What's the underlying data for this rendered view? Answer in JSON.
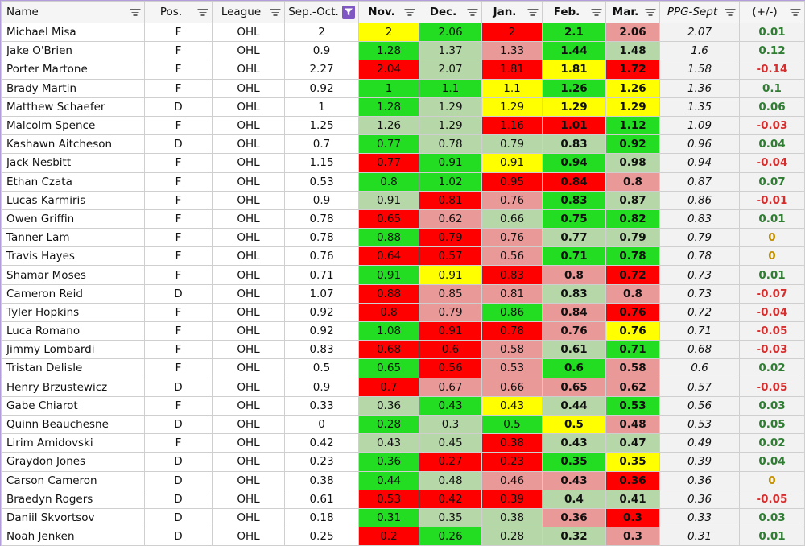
{
  "colors": {
    "green": "#22dd22",
    "light_green": "#b6d7a8",
    "yellow": "#ffff00",
    "light_red": "#ea9999",
    "red": "#ff0000",
    "pm_positive": "#2e7d32",
    "pm_negative": "#d32f2f",
    "pm_zero": "#bf8f00",
    "filter_active": "#7e57c2"
  },
  "headers": [
    {
      "label": "Name",
      "filter": "filter-icon"
    },
    {
      "label": "Pos.",
      "filter": "filter-icon"
    },
    {
      "label": "League",
      "filter": "filter-icon"
    },
    {
      "label": "Sep.-Oct.",
      "filter": "filter-active-icon"
    },
    {
      "label": "Nov.",
      "filter": "filter-icon"
    },
    {
      "label": "Dec.",
      "filter": "filter-icon"
    },
    {
      "label": "Jan.",
      "filter": "filter-icon"
    },
    {
      "label": "Feb.",
      "filter": "filter-icon"
    },
    {
      "label": "Mar.",
      "filter": "filter-icon"
    },
    {
      "label": "PPG-Sept",
      "filter": "filter-icon"
    },
    {
      "label": "(+/-)",
      "filter": "filter-icon"
    }
  ],
  "rows": [
    {
      "name": "Michael Misa",
      "pos": "F",
      "league": "OHL",
      "sepoct": "2",
      "nov": "2",
      "nov_c": "yellow",
      "dec": "2.06",
      "dec_c": "green",
      "jan": "2",
      "jan_c": "red",
      "feb": "2.1",
      "feb_c": "green",
      "mar": "2.06",
      "mar_c": "light_red",
      "ppg": "2.07",
      "pm": "0.01"
    },
    {
      "name": "Jake O'Brien",
      "pos": "F",
      "league": "OHL",
      "sepoct": "0.9",
      "nov": "1.28",
      "nov_c": "green",
      "dec": "1.37",
      "dec_c": "light_green",
      "jan": "1.33",
      "jan_c": "light_red",
      "feb": "1.44",
      "feb_c": "green",
      "mar": "1.48",
      "mar_c": "light_green",
      "ppg": "1.6",
      "pm": "0.12"
    },
    {
      "name": "Porter Martone",
      "pos": "F",
      "league": "OHL",
      "sepoct": "2.27",
      "nov": "2.04",
      "nov_c": "red",
      "dec": "2.07",
      "dec_c": "light_green",
      "jan": "1.81",
      "jan_c": "red",
      "feb": "1.81",
      "feb_c": "yellow",
      "mar": "1.72",
      "mar_c": "red",
      "ppg": "1.58",
      "pm": "-0.14"
    },
    {
      "name": "Brady Martin",
      "pos": "F",
      "league": "OHL",
      "sepoct": "0.92",
      "nov": "1",
      "nov_c": "green",
      "dec": "1.1",
      "dec_c": "green",
      "jan": "1.1",
      "jan_c": "yellow",
      "feb": "1.26",
      "feb_c": "green",
      "mar": "1.26",
      "mar_c": "yellow",
      "ppg": "1.36",
      "pm": "0.1"
    },
    {
      "name": "Matthew Schaefer",
      "pos": "D",
      "league": "OHL",
      "sepoct": "1",
      "nov": "1.28",
      "nov_c": "green",
      "dec": "1.29",
      "dec_c": "light_green",
      "jan": "1.29",
      "jan_c": "yellow",
      "feb": "1.29",
      "feb_c": "yellow",
      "mar": "1.29",
      "mar_c": "yellow",
      "ppg": "1.35",
      "pm": "0.06"
    },
    {
      "name": "Malcolm Spence",
      "pos": "F",
      "league": "OHL",
      "sepoct": "1.25",
      "nov": "1.26",
      "nov_c": "light_green",
      "dec": "1.29",
      "dec_c": "light_green",
      "jan": "1.16",
      "jan_c": "red",
      "feb": "1.01",
      "feb_c": "red",
      "mar": "1.12",
      "mar_c": "green",
      "ppg": "1.09",
      "pm": "-0.03"
    },
    {
      "name": "Kashawn Aitcheson",
      "pos": "D",
      "league": "OHL",
      "sepoct": "0.7",
      "nov": "0.77",
      "nov_c": "green",
      "dec": "0.78",
      "dec_c": "light_green",
      "jan": "0.79",
      "jan_c": "light_green",
      "feb": "0.83",
      "feb_c": "light_green",
      "mar": "0.92",
      "mar_c": "green",
      "ppg": "0.96",
      "pm": "0.04"
    },
    {
      "name": "Jack Nesbitt",
      "pos": "F",
      "league": "OHL",
      "sepoct": "1.15",
      "nov": "0.77",
      "nov_c": "red",
      "dec": "0.91",
      "dec_c": "green",
      "jan": "0.91",
      "jan_c": "yellow",
      "feb": "0.94",
      "feb_c": "green",
      "mar": "0.98",
      "mar_c": "light_green",
      "ppg": "0.94",
      "pm": "-0.04"
    },
    {
      "name": "Ethan Czata",
      "pos": "F",
      "league": "OHL",
      "sepoct": "0.53",
      "nov": "0.8",
      "nov_c": "green",
      "dec": "1.02",
      "dec_c": "green",
      "jan": "0.95",
      "jan_c": "red",
      "feb": "0.84",
      "feb_c": "red",
      "mar": "0.8",
      "mar_c": "light_red",
      "ppg": "0.87",
      "pm": "0.07"
    },
    {
      "name": "Lucas Karmiris",
      "pos": "F",
      "league": "OHL",
      "sepoct": "0.9",
      "nov": "0.91",
      "nov_c": "light_green",
      "dec": "0.81",
      "dec_c": "red",
      "jan": "0.76",
      "jan_c": "light_red",
      "feb": "0.83",
      "feb_c": "green",
      "mar": "0.87",
      "mar_c": "light_green",
      "ppg": "0.86",
      "pm": "-0.01"
    },
    {
      "name": "Owen Griffin",
      "pos": "F",
      "league": "OHL",
      "sepoct": "0.78",
      "nov": "0.65",
      "nov_c": "red",
      "dec": "0.62",
      "dec_c": "light_red",
      "jan": "0.66",
      "jan_c": "light_green",
      "feb": "0.75",
      "feb_c": "green",
      "mar": "0.82",
      "mar_c": "green",
      "ppg": "0.83",
      "pm": "0.01"
    },
    {
      "name": "Tanner Lam",
      "pos": "F",
      "league": "OHL",
      "sepoct": "0.78",
      "nov": "0.88",
      "nov_c": "green",
      "dec": "0.79",
      "dec_c": "red",
      "jan": "0.76",
      "jan_c": "light_red",
      "feb": "0.77",
      "feb_c": "light_green",
      "mar": "0.79",
      "mar_c": "light_green",
      "ppg": "0.79",
      "pm": "0"
    },
    {
      "name": "Travis Hayes",
      "pos": "F",
      "league": "OHL",
      "sepoct": "0.76",
      "nov": "0.64",
      "nov_c": "red",
      "dec": "0.57",
      "dec_c": "red",
      "jan": "0.56",
      "jan_c": "light_red",
      "feb": "0.71",
      "feb_c": "green",
      "mar": "0.78",
      "mar_c": "green",
      "ppg": "0.78",
      "pm": "0"
    },
    {
      "name": "Shamar Moses",
      "pos": "F",
      "league": "OHL",
      "sepoct": "0.71",
      "nov": "0.91",
      "nov_c": "green",
      "dec": "0.91",
      "dec_c": "yellow",
      "jan": "0.83",
      "jan_c": "red",
      "feb": "0.8",
      "feb_c": "light_red",
      "mar": "0.72",
      "mar_c": "red",
      "ppg": "0.73",
      "pm": "0.01"
    },
    {
      "name": "Cameron Reid",
      "pos": "D",
      "league": "OHL",
      "sepoct": "1.07",
      "nov": "0.88",
      "nov_c": "red",
      "dec": "0.85",
      "dec_c": "light_red",
      "jan": "0.81",
      "jan_c": "light_red",
      "feb": "0.83",
      "feb_c": "light_green",
      "mar": "0.8",
      "mar_c": "light_red",
      "ppg": "0.73",
      "pm": "-0.07"
    },
    {
      "name": "Tyler Hopkins",
      "pos": "F",
      "league": "OHL",
      "sepoct": "0.92",
      "nov": "0.8",
      "nov_c": "red",
      "dec": "0.79",
      "dec_c": "light_red",
      "jan": "0.86",
      "jan_c": "green",
      "feb": "0.84",
      "feb_c": "light_red",
      "mar": "0.76",
      "mar_c": "red",
      "ppg": "0.72",
      "pm": "-0.04"
    },
    {
      "name": "Luca Romano",
      "pos": "F",
      "league": "OHL",
      "sepoct": "0.92",
      "nov": "1.08",
      "nov_c": "green",
      "dec": "0.91",
      "dec_c": "red",
      "jan": "0.78",
      "jan_c": "red",
      "feb": "0.76",
      "feb_c": "light_red",
      "mar": "0.76",
      "mar_c": "yellow",
      "ppg": "0.71",
      "pm": "-0.05"
    },
    {
      "name": "Jimmy Lombardi",
      "pos": "F",
      "league": "OHL",
      "sepoct": "0.83",
      "nov": "0.68",
      "nov_c": "red",
      "dec": "0.6",
      "dec_c": "red",
      "jan": "0.58",
      "jan_c": "light_red",
      "feb": "0.61",
      "feb_c": "light_green",
      "mar": "0.71",
      "mar_c": "green",
      "ppg": "0.68",
      "pm": "-0.03"
    },
    {
      "name": "Tristan Delisle",
      "pos": "F",
      "league": "OHL",
      "sepoct": "0.5",
      "nov": "0.65",
      "nov_c": "green",
      "dec": "0.56",
      "dec_c": "red",
      "jan": "0.53",
      "jan_c": "light_red",
      "feb": "0.6",
      "feb_c": "green",
      "mar": "0.58",
      "mar_c": "light_red",
      "ppg": "0.6",
      "pm": "0.02"
    },
    {
      "name": "Henry Brzustewicz",
      "pos": "D",
      "league": "OHL",
      "sepoct": "0.9",
      "nov": "0.7",
      "nov_c": "red",
      "dec": "0.67",
      "dec_c": "light_red",
      "jan": "0.66",
      "jan_c": "light_red",
      "feb": "0.65",
      "feb_c": "light_red",
      "mar": "0.62",
      "mar_c": "light_red",
      "ppg": "0.57",
      "pm": "-0.05"
    },
    {
      "name": "Gabe Chiarot",
      "pos": "F",
      "league": "OHL",
      "sepoct": "0.33",
      "nov": "0.36",
      "nov_c": "light_green",
      "dec": "0.43",
      "dec_c": "green",
      "jan": "0.43",
      "jan_c": "yellow",
      "feb": "0.44",
      "feb_c": "light_green",
      "mar": "0.53",
      "mar_c": "green",
      "ppg": "0.56",
      "pm": "0.03"
    },
    {
      "name": "Quinn Beauchesne",
      "pos": "D",
      "league": "OHL",
      "sepoct": "0",
      "nov": "0.28",
      "nov_c": "green",
      "dec": "0.3",
      "dec_c": "light_green",
      "jan": "0.5",
      "jan_c": "green",
      "feb": "0.5",
      "feb_c": "yellow",
      "mar": "0.48",
      "mar_c": "light_red",
      "ppg": "0.53",
      "pm": "0.05"
    },
    {
      "name": "Lirim Amidovski",
      "pos": "F",
      "league": "OHL",
      "sepoct": "0.42",
      "nov": "0.43",
      "nov_c": "light_green",
      "dec": "0.45",
      "dec_c": "light_green",
      "jan": "0.38",
      "jan_c": "red",
      "feb": "0.43",
      "feb_c": "light_green",
      "mar": "0.47",
      "mar_c": "light_green",
      "ppg": "0.49",
      "pm": "0.02"
    },
    {
      "name": "Graydon Jones",
      "pos": "D",
      "league": "OHL",
      "sepoct": "0.23",
      "nov": "0.36",
      "nov_c": "green",
      "dec": "0.27",
      "dec_c": "red",
      "jan": "0.23",
      "jan_c": "red",
      "feb": "0.35",
      "feb_c": "green",
      "mar": "0.35",
      "mar_c": "yellow",
      "ppg": "0.39",
      "pm": "0.04"
    },
    {
      "name": "Carson Cameron",
      "pos": "D",
      "league": "OHL",
      "sepoct": "0.38",
      "nov": "0.44",
      "nov_c": "green",
      "dec": "0.48",
      "dec_c": "light_green",
      "jan": "0.46",
      "jan_c": "light_red",
      "feb": "0.43",
      "feb_c": "light_red",
      "mar": "0.36",
      "mar_c": "red",
      "ppg": "0.36",
      "pm": "0"
    },
    {
      "name": "Braedyn Rogers",
      "pos": "D",
      "league": "OHL",
      "sepoct": "0.61",
      "nov": "0.53",
      "nov_c": "red",
      "dec": "0.42",
      "dec_c": "red",
      "jan": "0.39",
      "jan_c": "red",
      "feb": "0.4",
      "feb_c": "light_green",
      "mar": "0.41",
      "mar_c": "light_green",
      "ppg": "0.36",
      "pm": "-0.05"
    },
    {
      "name": "Daniil Skvortsov",
      "pos": "D",
      "league": "OHL",
      "sepoct": "0.18",
      "nov": "0.31",
      "nov_c": "green",
      "dec": "0.35",
      "dec_c": "light_green",
      "jan": "0.38",
      "jan_c": "light_green",
      "feb": "0.36",
      "feb_c": "light_red",
      "mar": "0.3",
      "mar_c": "red",
      "ppg": "0.33",
      "pm": "0.03"
    },
    {
      "name": "Noah Jenken",
      "pos": "D",
      "league": "OHL",
      "sepoct": "0.25",
      "nov": "0.2",
      "nov_c": "red",
      "dec": "0.26",
      "dec_c": "green",
      "jan": "0.28",
      "jan_c": "light_green",
      "feb": "0.32",
      "feb_c": "light_green",
      "mar": "0.3",
      "mar_c": "light_red",
      "ppg": "0.31",
      "pm": "0.01"
    }
  ]
}
